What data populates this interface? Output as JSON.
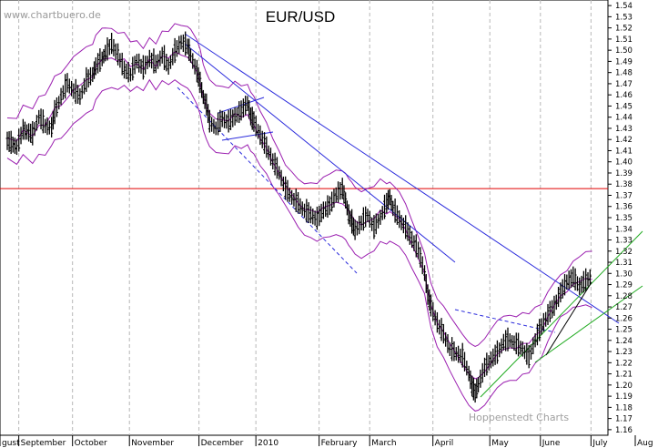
{
  "chart_data": {
    "type": "line",
    "title": "EUR/USD",
    "watermark": "www.chartbuero.de",
    "credit": "Hoppenstedt Charts",
    "ylim": [
      1.155,
      1.545
    ],
    "y_ticks": [
      1.16,
      1.17,
      1.18,
      1.19,
      1.2,
      1.21,
      1.22,
      1.23,
      1.24,
      1.25,
      1.26,
      1.27,
      1.28,
      1.29,
      1.3,
      1.31,
      1.32,
      1.33,
      1.34,
      1.35,
      1.36,
      1.37,
      1.38,
      1.39,
      1.4,
      1.41,
      1.42,
      1.43,
      1.44,
      1.45,
      1.46,
      1.47,
      1.48,
      1.49,
      1.5,
      1.51,
      1.52,
      1.53,
      1.54
    ],
    "x_months": [
      "gust",
      "September",
      "October",
      "November",
      "December",
      "2010",
      "February",
      "March",
      "April",
      "May",
      "June",
      "July",
      "Aug"
    ],
    "horizontal_line": {
      "value": 1.376,
      "color": "#e00000"
    },
    "colors": {
      "price": "#000000",
      "bands": "#9b1fb0",
      "trend": "#2a2adc",
      "support": "#1faa1f",
      "hline": "#e00000"
    },
    "series": [
      {
        "values": [
          {
            "t": 0,
            "y": 1.418
          },
          {
            "t": 3,
            "y": 1.413
          },
          {
            "t": 5,
            "y": 1.428
          },
          {
            "t": 8,
            "y": 1.424
          },
          {
            "t": 10,
            "y": 1.44
          },
          {
            "t": 12,
            "y": 1.432
          },
          {
            "t": 14,
            "y": 1.43
          },
          {
            "t": 15,
            "y": 1.443
          },
          {
            "t": 17,
            "y": 1.458
          },
          {
            "t": 19,
            "y": 1.47
          },
          {
            "t": 21,
            "y": 1.463
          },
          {
            "t": 23,
            "y": 1.458
          },
          {
            "t": 25,
            "y": 1.472
          },
          {
            "t": 27,
            "y": 1.478
          },
          {
            "t": 28,
            "y": 1.485
          },
          {
            "t": 30,
            "y": 1.492
          },
          {
            "t": 31,
            "y": 1.497
          },
          {
            "t": 33,
            "y": 1.505
          },
          {
            "t": 35,
            "y": 1.495
          },
          {
            "t": 37,
            "y": 1.482
          },
          {
            "t": 39,
            "y": 1.478
          },
          {
            "t": 41,
            "y": 1.49
          },
          {
            "t": 43,
            "y": 1.483
          },
          {
            "t": 45,
            "y": 1.492
          },
          {
            "t": 47,
            "y": 1.487
          },
          {
            "t": 49,
            "y": 1.495
          },
          {
            "t": 51,
            "y": 1.485
          },
          {
            "t": 53,
            "y": 1.498
          },
          {
            "t": 55,
            "y": 1.507
          },
          {
            "t": 57,
            "y": 1.503
          },
          {
            "t": 58,
            "y": 1.495
          },
          {
            "t": 60,
            "y": 1.48
          },
          {
            "t": 61,
            "y": 1.47
          },
          {
            "t": 62,
            "y": 1.458
          },
          {
            "t": 63,
            "y": 1.45
          },
          {
            "t": 64,
            "y": 1.435
          },
          {
            "t": 66,
            "y": 1.43
          },
          {
            "t": 68,
            "y": 1.438
          },
          {
            "t": 70,
            "y": 1.435
          },
          {
            "t": 72,
            "y": 1.44
          },
          {
            "t": 74,
            "y": 1.445
          },
          {
            "t": 76,
            "y": 1.452
          },
          {
            "t": 77,
            "y": 1.44
          },
          {
            "t": 78,
            "y": 1.435
          },
          {
            "t": 80,
            "y": 1.423
          },
          {
            "t": 82,
            "y": 1.412
          },
          {
            "t": 84,
            "y": 1.4
          },
          {
            "t": 86,
            "y": 1.39
          },
          {
            "t": 88,
            "y": 1.375
          },
          {
            "t": 90,
            "y": 1.368
          },
          {
            "t": 92,
            "y": 1.362
          },
          {
            "t": 94,
            "y": 1.356
          },
          {
            "t": 96,
            "y": 1.352
          },
          {
            "t": 98,
            "y": 1.348
          },
          {
            "t": 100,
            "y": 1.356
          },
          {
            "t": 102,
            "y": 1.36
          },
          {
            "t": 104,
            "y": 1.37
          },
          {
            "t": 106,
            "y": 1.375
          },
          {
            "t": 107,
            "y": 1.365
          },
          {
            "t": 108,
            "y": 1.352
          },
          {
            "t": 109,
            "y": 1.345
          },
          {
            "t": 110,
            "y": 1.338
          },
          {
            "t": 112,
            "y": 1.345
          },
          {
            "t": 114,
            "y": 1.352
          },
          {
            "t": 116,
            "y": 1.34
          },
          {
            "t": 118,
            "y": 1.35
          },
          {
            "t": 120,
            "y": 1.362
          },
          {
            "t": 121,
            "y": 1.368
          },
          {
            "t": 122,
            "y": 1.358
          },
          {
            "t": 124,
            "y": 1.348
          },
          {
            "t": 126,
            "y": 1.34
          },
          {
            "t": 128,
            "y": 1.33
          },
          {
            "t": 130,
            "y": 1.32
          },
          {
            "t": 132,
            "y": 1.3
          },
          {
            "t": 133,
            "y": 1.28
          },
          {
            "t": 134,
            "y": 1.27
          },
          {
            "t": 136,
            "y": 1.255
          },
          {
            "t": 138,
            "y": 1.245
          },
          {
            "t": 140,
            "y": 1.232
          },
          {
            "t": 142,
            "y": 1.228
          },
          {
            "t": 144,
            "y": 1.225
          },
          {
            "t": 146,
            "y": 1.21
          },
          {
            "t": 147,
            "y": 1.198
          },
          {
            "t": 148,
            "y": 1.192
          },
          {
            "t": 149,
            "y": 1.2
          },
          {
            "t": 151,
            "y": 1.215
          },
          {
            "t": 153,
            "y": 1.222
          },
          {
            "t": 155,
            "y": 1.228
          },
          {
            "t": 157,
            "y": 1.238
          },
          {
            "t": 159,
            "y": 1.24
          },
          {
            "t": 161,
            "y": 1.236
          },
          {
            "t": 163,
            "y": 1.232
          },
          {
            "t": 165,
            "y": 1.224
          },
          {
            "t": 167,
            "y": 1.24
          },
          {
            "t": 169,
            "y": 1.252
          },
          {
            "t": 171,
            "y": 1.262
          },
          {
            "t": 173,
            "y": 1.27
          },
          {
            "t": 175,
            "y": 1.282
          },
          {
            "t": 177,
            "y": 1.292
          },
          {
            "t": 179,
            "y": 1.296
          },
          {
            "t": 181,
            "y": 1.288
          },
          {
            "t": 183,
            "y": 1.293
          },
          {
            "t": 185,
            "y": 1.298
          }
        ]
      }
    ]
  }
}
